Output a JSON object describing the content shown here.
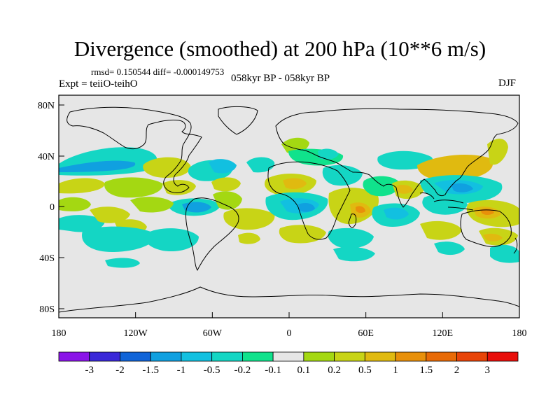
{
  "title": "Divergence (smoothed) at 200 hPa (10**6 m/s)",
  "stats_line": "rmsd= 0.150544 diff= -0.000149753",
  "expt_line": "Expt = teiiO-teihO",
  "period_line": "058kyr BP - 058kyr BP",
  "season": "DJF",
  "map": {
    "lat_ticks": [
      "80N",
      "40N",
      "0",
      "40S",
      "80S"
    ],
    "lon_ticks": [
      "180",
      "120W",
      "60W",
      "0",
      "60E",
      "120E",
      "180"
    ],
    "background_color": "#e6e6e6"
  },
  "colorbar": {
    "labels": [
      "-3",
      "-2",
      "-1.5",
      "-1",
      "-0.5",
      "-0.2",
      "-0.1",
      "0.1",
      "0.2",
      "0.5",
      "1",
      "1.5",
      "2",
      "3"
    ],
    "colors": [
      "#8a14e8",
      "#3a28d8",
      "#1064d8",
      "#10a0e0",
      "#12c0e0",
      "#14d6c4",
      "#10e28c",
      "#e6e6e6",
      "#a4d812",
      "#c8d416",
      "#e0ba10",
      "#e8900a",
      "#e86a06",
      "#e84408",
      "#e80e0a"
    ]
  }
}
